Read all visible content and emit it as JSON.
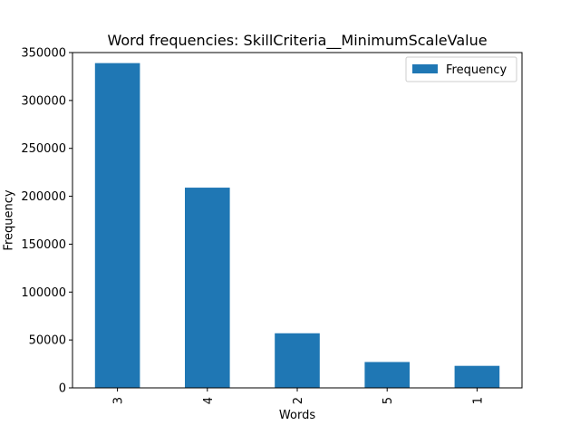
{
  "chart_data": {
    "type": "bar",
    "title": "Word frequencies: SkillCriteria__MinimumScaleValue",
    "xlabel": "Words",
    "ylabel": "Frequency",
    "categories": [
      "3",
      "4",
      "2",
      "5",
      "1"
    ],
    "series": [
      {
        "name": "Frequency",
        "values": [
          339000,
          209000,
          57000,
          27000,
          23000
        ],
        "color": "#1f77b4"
      }
    ],
    "ylim": [
      0,
      350000
    ],
    "yticks": [
      0,
      50000,
      100000,
      150000,
      200000,
      250000,
      300000,
      350000
    ],
    "ytick_labels": [
      "0",
      "50000",
      "100000",
      "150000",
      "200000",
      "250000",
      "300000",
      "350000"
    ],
    "grid": false,
    "legend_position": "top-right"
  }
}
